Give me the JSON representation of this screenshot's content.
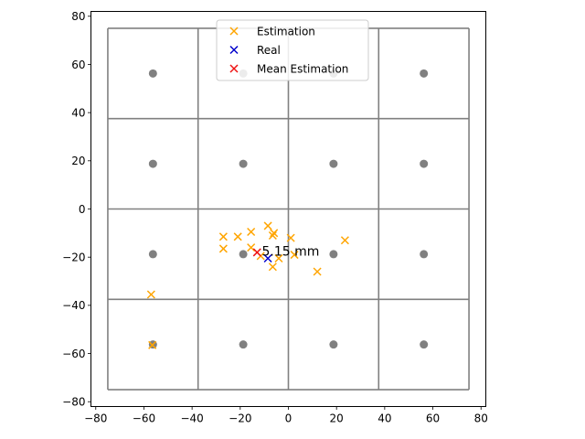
{
  "chart_data": {
    "type": "scatter",
    "title": "",
    "xlabel": "",
    "ylabel": "",
    "xlim": [
      -82,
      82
    ],
    "ylim": [
      -82,
      82
    ],
    "xticks": [
      -80,
      -60,
      -40,
      -20,
      0,
      20,
      40,
      60,
      80
    ],
    "yticks": [
      -80,
      -60,
      -40,
      -20,
      0,
      20,
      40,
      60,
      80
    ],
    "grid": false,
    "legend_position": "top-center",
    "cell_boundaries": [
      -75,
      -37.5,
      0,
      37.5,
      75
    ],
    "grid_color": "#808080",
    "reference_points": {
      "color": "#808080",
      "values": [
        [
          -56.25,
          56.25
        ],
        [
          -18.75,
          56.25
        ],
        [
          18.75,
          56.25
        ],
        [
          56.25,
          56.25
        ],
        [
          -56.25,
          18.75
        ],
        [
          -18.75,
          18.75
        ],
        [
          18.75,
          18.75
        ],
        [
          56.25,
          18.75
        ],
        [
          -56.25,
          -18.75
        ],
        [
          -18.75,
          -18.75
        ],
        [
          18.75,
          -18.75
        ],
        [
          56.25,
          -18.75
        ],
        [
          -56.25,
          -56.25
        ],
        [
          -18.75,
          -56.25
        ],
        [
          18.75,
          -56.25
        ],
        [
          56.25,
          -56.25
        ]
      ]
    },
    "series": [
      {
        "name": "Estimation",
        "color": "#ffa500",
        "marker": "x",
        "points": [
          [
            -27,
            -11.5
          ],
          [
            -21,
            -11.5
          ],
          [
            -15.5,
            -9.5
          ],
          [
            -8.5,
            -7
          ],
          [
            -6,
            -10
          ],
          [
            -6.5,
            -11
          ],
          [
            1,
            -12
          ],
          [
            23.5,
            -13
          ],
          [
            -27,
            -16.5
          ],
          [
            -15.5,
            -16
          ],
          [
            -11.5,
            -19.5
          ],
          [
            -4,
            -20.5
          ],
          [
            2.5,
            -19
          ],
          [
            -6.5,
            -24
          ],
          [
            12,
            -26
          ],
          [
            -57,
            -35.5
          ],
          [
            -56.5,
            -56.5
          ]
        ]
      },
      {
        "name": "Real",
        "color": "#0000cc",
        "marker": "x",
        "points": [
          [
            -8.5,
            -20.5
          ]
        ]
      },
      {
        "name": "Mean Estimation",
        "color": "#ee1111",
        "marker": "x",
        "points": [
          [
            -13,
            -18
          ]
        ]
      }
    ],
    "annotations": [
      {
        "text": "5.15 mm",
        "x": -11,
        "y": -17.5
      }
    ]
  }
}
